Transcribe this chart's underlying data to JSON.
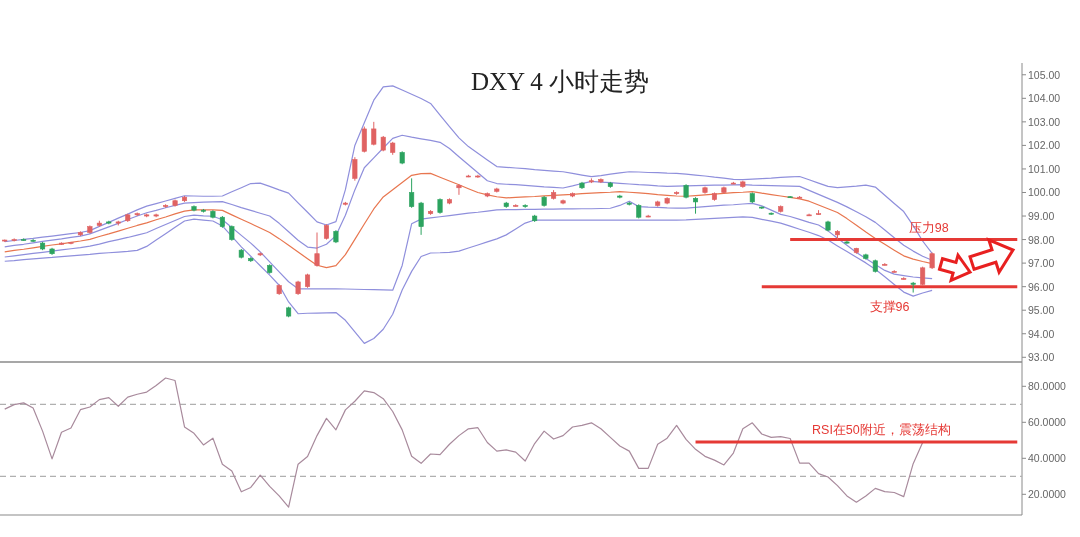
{
  "chart_data": [
    {
      "type": "candlestick",
      "title": "DXY 4 小时走势",
      "tick_labels": "y",
      "categories": [
        null,
        null,
        null,
        null,
        null,
        null,
        null,
        null,
        null,
        null,
        null,
        null,
        null,
        null,
        null,
        null,
        null,
        null,
        null,
        null,
        null,
        null,
        null,
        null,
        null,
        null,
        null,
        null,
        null,
        null,
        null,
        null,
        null,
        null,
        null,
        null,
        null,
        null,
        null,
        null,
        null,
        null,
        null,
        null,
        null,
        null,
        null,
        null,
        null,
        null,
        null,
        null,
        null,
        null,
        null,
        null,
        null,
        null,
        null,
        null,
        null,
        null,
        null,
        null,
        null,
        null,
        null,
        null,
        null,
        null,
        null,
        null,
        null,
        null,
        null,
        null,
        null,
        null,
        null,
        null,
        null,
        null,
        null,
        null,
        null,
        null,
        null,
        null,
        null,
        null,
        null,
        null,
        null,
        null,
        null,
        null,
        null,
        null,
        null,
        null,
        null,
        null,
        null,
        null,
        null,
        null,
        null,
        null
      ],
      "ohlc": [
        [
          97.95,
          98.0,
          97.9,
          97.98
        ],
        [
          97.98,
          98.05,
          97.92,
          98.0
        ],
        [
          98.0,
          98.05,
          97.95,
          97.97
        ],
        [
          97.97,
          98.02,
          97.9,
          97.95
        ],
        [
          97.85,
          97.9,
          97.55,
          97.6
        ],
        [
          97.6,
          97.65,
          97.35,
          97.4
        ],
        [
          97.8,
          97.88,
          97.78,
          97.85
        ],
        [
          97.85,
          97.9,
          97.8,
          97.88
        ],
        [
          98.2,
          98.35,
          98.15,
          98.3
        ],
        [
          98.3,
          98.6,
          98.25,
          98.55
        ],
        [
          98.6,
          98.8,
          98.55,
          98.7
        ],
        [
          98.75,
          98.8,
          98.65,
          98.7
        ],
        [
          98.7,
          98.8,
          98.6,
          98.75
        ],
        [
          98.8,
          99.1,
          98.75,
          99.05
        ],
        [
          99.05,
          99.15,
          99.0,
          99.1
        ],
        [
          99.0,
          99.1,
          98.95,
          99.05
        ],
        [
          99.0,
          99.1,
          98.95,
          99.05
        ],
        [
          99.4,
          99.5,
          99.35,
          99.45
        ],
        [
          99.45,
          99.7,
          99.4,
          99.65
        ],
        [
          99.65,
          99.85,
          99.6,
          99.8
        ],
        [
          99.4,
          99.45,
          99.2,
          99.25
        ],
        [
          99.25,
          99.3,
          99.15,
          99.2
        ],
        [
          99.2,
          99.25,
          98.9,
          98.95
        ],
        [
          98.95,
          99.0,
          98.5,
          98.55
        ],
        [
          98.55,
          98.6,
          97.95,
          98.0
        ],
        [
          97.55,
          97.6,
          97.2,
          97.25
        ],
        [
          97.2,
          97.25,
          97.05,
          97.1
        ],
        [
          97.35,
          97.45,
          97.3,
          97.4
        ],
        [
          96.9,
          96.95,
          96.55,
          96.6
        ],
        [
          95.7,
          96.1,
          95.65,
          96.05
        ],
        [
          95.1,
          95.15,
          94.7,
          94.75
        ],
        [
          95.7,
          96.25,
          95.65,
          96.2
        ],
        [
          96.0,
          96.55,
          95.95,
          96.5
        ],
        [
          96.9,
          98.3,
          96.85,
          97.4
        ],
        [
          98.05,
          98.65,
          98.0,
          98.6
        ],
        [
          98.35,
          98.4,
          97.85,
          97.9
        ],
        [
          99.5,
          99.6,
          99.45,
          99.55
        ],
        [
          100.6,
          101.5,
          100.5,
          101.4
        ],
        [
          101.75,
          102.8,
          101.7,
          102.7
        ],
        [
          102.05,
          103.0,
          102.0,
          102.7
        ],
        [
          101.8,
          102.4,
          101.75,
          102.35
        ],
        [
          101.7,
          102.15,
          101.6,
          102.1
        ],
        [
          101.7,
          101.75,
          101.2,
          101.25
        ],
        [
          100.0,
          100.6,
          99.35,
          99.4
        ],
        [
          99.55,
          99.6,
          98.2,
          98.55
        ],
        [
          99.1,
          99.25,
          99.05,
          99.2
        ],
        [
          99.7,
          99.75,
          99.1,
          99.15
        ],
        [
          99.55,
          99.75,
          99.5,
          99.7
        ],
        [
          100.2,
          100.35,
          99.9,
          100.3
        ],
        [
          100.7,
          100.75,
          100.65,
          100.7
        ],
        [
          100.68,
          100.75,
          100.62,
          100.7
        ],
        [
          99.85,
          100.0,
          99.8,
          99.95
        ],
        [
          100.05,
          100.2,
          100.0,
          100.15
        ],
        [
          99.55,
          99.6,
          99.35,
          99.4
        ],
        [
          99.45,
          99.5,
          99.4,
          99.45
        ],
        [
          99.45,
          99.5,
          99.35,
          99.4
        ],
        [
          99.0,
          99.05,
          98.75,
          98.8
        ],
        [
          99.8,
          99.85,
          99.4,
          99.45
        ],
        [
          99.75,
          100.1,
          99.7,
          100.0
        ],
        [
          99.55,
          99.7,
          99.5,
          99.65
        ],
        [
          99.85,
          100.0,
          99.8,
          99.95
        ],
        [
          100.4,
          100.45,
          100.15,
          100.2
        ],
        [
          100.45,
          100.6,
          100.4,
          100.5
        ],
        [
          100.45,
          100.6,
          100.4,
          100.55
        ],
        [
          100.4,
          100.45,
          100.2,
          100.25
        ],
        [
          99.85,
          99.9,
          99.75,
          99.8
        ],
        [
          99.55,
          99.6,
          99.45,
          99.5
        ],
        [
          99.45,
          99.5,
          98.9,
          98.95
        ],
        [
          99.0,
          99.05,
          98.95,
          99.0
        ],
        [
          99.45,
          99.65,
          99.4,
          99.6
        ],
        [
          99.55,
          99.8,
          99.5,
          99.75
        ],
        [
          99.95,
          100.05,
          99.9,
          100.0
        ],
        [
          100.3,
          100.35,
          99.75,
          99.8
        ],
        [
          99.75,
          99.8,
          99.1,
          99.6
        ],
        [
          100.0,
          100.25,
          99.95,
          100.2
        ],
        [
          99.7,
          100.0,
          99.65,
          99.95
        ],
        [
          100.0,
          100.25,
          99.95,
          100.2
        ],
        [
          100.38,
          100.45,
          100.35,
          100.4
        ],
        [
          100.25,
          100.5,
          100.2,
          100.45
        ],
        [
          99.95,
          100.0,
          99.55,
          99.6
        ],
        [
          99.38,
          99.4,
          99.3,
          99.35
        ],
        [
          99.12,
          99.15,
          99.05,
          99.1
        ],
        [
          99.2,
          99.45,
          99.15,
          99.4
        ],
        [
          99.82,
          99.85,
          99.78,
          99.8
        ],
        [
          99.8,
          99.85,
          99.75,
          99.8
        ],
        [
          99.05,
          99.1,
          99.0,
          99.05
        ],
        [
          99.1,
          99.25,
          99.05,
          99.1
        ],
        [
          98.75,
          98.8,
          98.35,
          98.4
        ],
        [
          98.2,
          98.4,
          98.0,
          98.35
        ],
        [
          97.9,
          97.95,
          97.82,
          97.85
        ],
        [
          97.45,
          97.65,
          97.4,
          97.63
        ],
        [
          97.35,
          97.4,
          97.15,
          97.2
        ],
        [
          97.1,
          97.15,
          96.6,
          96.65
        ],
        [
          96.95,
          97.0,
          96.9,
          96.95
        ],
        [
          96.65,
          96.7,
          96.6,
          96.65
        ],
        [
          96.35,
          96.4,
          96.3,
          96.35
        ],
        [
          96.15,
          96.2,
          95.75,
          96.1
        ],
        [
          96.1,
          96.85,
          96.05,
          96.8
        ],
        [
          96.8,
          97.45,
          96.75,
          97.4
        ],
        null,
        null,
        null,
        null,
        null,
        null,
        null,
        null,
        null
      ],
      "colors": [
        "#e06262",
        "#e06262",
        "#2ca35f",
        "#2ca35f",
        "#2ca35f",
        "#2ca35f",
        "#e06262",
        "#e06262",
        "#e06262",
        "#e06262",
        "#e06262",
        "#2ca35f",
        "#e06262",
        "#e06262",
        "#e06262",
        "#e06262",
        "#e06262",
        "#e06262",
        "#e06262",
        "#e06262",
        "#2ca35f",
        "#2ca35f",
        "#2ca35f",
        "#2ca35f",
        "#2ca35f",
        "#2ca35f",
        "#2ca35f",
        "#e06262",
        "#2ca35f",
        "#e06262",
        "#2ca35f",
        "#e06262",
        "#e06262",
        "#e06262",
        "#e06262",
        "#2ca35f",
        "#e06262",
        "#e06262",
        "#e06262",
        "#e06262",
        "#e06262",
        "#e06262",
        "#2ca35f",
        "#2ca35f",
        "#2ca35f",
        "#e06262",
        "#2ca35f",
        "#e06262",
        "#e06262",
        "#e06262",
        "#e06262",
        "#e06262",
        "#e06262",
        "#2ca35f",
        "#e06262",
        "#2ca35f",
        "#2ca35f",
        "#2ca35f",
        "#e06262",
        "#e06262",
        "#e06262",
        "#2ca35f",
        "#e06262",
        "#e06262",
        "#2ca35f",
        "#2ca35f",
        "#2ca35f",
        "#2ca35f",
        "#e06262",
        "#e06262",
        "#e06262",
        "#e06262",
        "#2ca35f",
        "#2ca35f",
        "#e06262",
        "#e06262",
        "#e06262",
        "#e06262",
        "#e06262",
        "#2ca35f",
        "#2ca35f",
        "#2ca35f",
        "#e06262",
        "#2ca35f",
        "#e06262",
        "#e06262",
        "#e06262",
        "#2ca35f",
        "#e06262",
        "#2ca35f",
        "#e06262",
        "#2ca35f",
        "#2ca35f",
        "#e06262",
        "#e06262",
        "#e06262",
        "#2ca35f",
        "#e06262",
        "#e06262",
        null,
        null,
        null,
        null,
        null,
        null,
        null,
        null,
        null
      ],
      "series": [
        {
          "type": "line",
          "color": "#8f8fdc",
          "values": [
            97.91,
            97.96,
            98.01,
            98.05,
            98.1,
            98.15,
            98.2,
            98.25,
            98.3,
            98.38,
            98.56,
            98.73,
            98.91,
            99.08,
            99.26,
            99.42,
            99.53,
            99.64,
            99.75,
            99.86,
            99.85,
            99.84,
            99.84,
            99.85,
            100.03,
            100.2,
            100.38,
            100.4,
            100.26,
            100.11,
            99.97,
            99.56,
            99.16,
            98.75,
            98.62,
            98.76,
            100.12,
            102.0,
            102.96,
            103.92,
            104.49,
            104.53,
            104.35,
            104.17,
            103.99,
            103.78,
            103.29,
            102.8,
            102.32,
            101.95,
            101.67,
            101.38,
            101.1,
            101.07,
            101.04,
            101.01,
            100.97,
            100.94,
            100.91,
            100.88,
            100.81,
            100.74,
            100.67,
            100.72,
            100.78,
            100.83,
            100.88,
            100.87,
            100.85,
            100.84,
            100.82,
            100.81,
            100.78,
            100.74,
            100.7,
            100.65,
            100.61,
            100.56,
            100.55,
            100.57,
            100.59,
            100.61,
            100.64,
            100.66,
            100.68,
            100.54,
            100.4,
            100.26,
            100.21,
            100.24,
            100.27,
            100.31,
            100.23,
            99.88,
            99.53,
            99.19,
            98.59,
            97.94,
            97.41,
            null,
            null,
            null,
            null,
            null,
            null,
            null,
            null,
            null
          ]
        },
        {
          "type": "line",
          "color": "#8f8fdc",
          "values": [
            97.69,
            97.75,
            97.8,
            97.86,
            97.92,
            97.98,
            98.03,
            98.09,
            98.15,
            98.24,
            98.39,
            98.54,
            98.69,
            98.85,
            99.0,
            99.14,
            99.24,
            99.35,
            99.45,
            99.55,
            99.57,
            99.59,
            99.6,
            99.61,
            99.49,
            99.36,
            99.24,
            99.12,
            99.0,
            98.69,
            98.33,
            97.97,
            97.68,
            97.64,
            97.8,
            98.17,
            99.03,
            100.11,
            101.05,
            101.47,
            101.89,
            102.3,
            102.43,
            102.35,
            102.28,
            102.21,
            102.13,
            101.87,
            101.52,
            101.18,
            100.84,
            100.5,
            100.38,
            100.35,
            100.33,
            100.3,
            100.27,
            100.24,
            100.22,
            100.19,
            100.28,
            100.38,
            100.47,
            100.44,
            100.42,
            100.39,
            100.36,
            100.33,
            100.31,
            100.28,
            100.26,
            100.27,
            100.28,
            100.29,
            100.3,
            100.31,
            100.31,
            100.32,
            100.33,
            100.31,
            100.3,
            100.29,
            100.28,
            100.27,
            100.26,
            100.09,
            99.92,
            99.75,
            99.58,
            99.39,
            99.18,
            98.97,
            98.73,
            98.41,
            98.08,
            97.76,
            97.51,
            97.29,
            97.12,
            null,
            null,
            null,
            null,
            null,
            null,
            null,
            null,
            null
          ]
        },
        {
          "type": "line",
          "color": "#e8764f",
          "values": [
            97.48,
            97.54,
            97.59,
            97.65,
            97.71,
            97.77,
            97.82,
            97.88,
            97.94,
            98.01,
            98.13,
            98.24,
            98.36,
            98.48,
            98.6,
            98.71,
            98.84,
            98.96,
            99.09,
            99.21,
            99.26,
            99.26,
            99.26,
            99.24,
            99.05,
            98.86,
            98.68,
            98.49,
            98.3,
            98.04,
            97.76,
            97.47,
            97.19,
            96.91,
            96.81,
            96.89,
            97.36,
            98.01,
            98.66,
            99.3,
            99.81,
            100.12,
            100.42,
            100.73,
            100.8,
            100.81,
            100.65,
            100.49,
            100.33,
            100.16,
            100.0,
            99.9,
            99.82,
            99.77,
            99.79,
            99.81,
            99.83,
            99.86,
            99.88,
            99.9,
            99.92,
            99.95,
            99.97,
            99.99,
            100.01,
            100.04,
            100.01,
            99.98,
            99.95,
            99.91,
            99.88,
            99.85,
            99.84,
            99.87,
            99.9,
            99.93,
            99.96,
            99.99,
            100.01,
            100.04,
            99.97,
            99.91,
            99.85,
            99.79,
            99.73,
            99.63,
            99.47,
            99.31,
            99.15,
            98.89,
            98.61,
            98.32,
            98.05,
            97.8,
            97.55,
            97.31,
            97.17,
            97.07,
            96.98,
            null,
            null,
            null,
            null,
            null,
            null,
            null,
            null,
            null
          ]
        },
        {
          "type": "line",
          "color": "#8f8fdc",
          "values": [
            97.26,
            97.31,
            97.36,
            97.41,
            97.46,
            97.51,
            97.56,
            97.61,
            97.66,
            97.72,
            97.81,
            97.91,
            98.0,
            98.09,
            98.19,
            98.29,
            98.47,
            98.64,
            98.81,
            98.98,
            99.04,
            99.01,
            98.99,
            98.84,
            98.51,
            98.18,
            97.85,
            97.48,
            97.05,
            96.63,
            96.21,
            95.91,
            95.91,
            95.91,
            95.91,
            95.91,
            95.9,
            95.89,
            95.88,
            95.87,
            95.86,
            95.85,
            96.9,
            98.67,
            98.87,
            98.92,
            98.97,
            99.02,
            99.07,
            99.12,
            99.16,
            99.21,
            99.26,
            99.27,
            99.27,
            99.28,
            99.28,
            99.29,
            99.29,
            99.3,
            99.3,
            99.31,
            99.31,
            99.32,
            99.33,
            99.45,
            99.63,
            99.4,
            99.38,
            99.37,
            99.35,
            99.34,
            99.34,
            99.37,
            99.4,
            99.43,
            99.46,
            99.48,
            99.51,
            99.54,
            99.43,
            99.25,
            99.07,
            98.98,
            98.86,
            98.73,
            98.62,
            98.37,
            98.06,
            97.76,
            97.45,
            97.2,
            96.94,
            96.69,
            96.53,
            96.47,
            96.41,
            96.37,
            96.34,
            null,
            null,
            null,
            null,
            null,
            null,
            null,
            null,
            null
          ]
        },
        {
          "type": "line",
          "color": "#8f8fdc",
          "values": [
            97.08,
            97.11,
            97.15,
            97.18,
            97.21,
            97.24,
            97.28,
            97.31,
            97.34,
            97.37,
            97.41,
            97.44,
            97.47,
            97.5,
            97.54,
            97.71,
            97.98,
            98.25,
            98.52,
            98.79,
            98.87,
            98.83,
            98.79,
            98.58,
            98.14,
            97.69,
            97.29,
            96.89,
            96.49,
            96.06,
            95.35,
            94.85,
            94.87,
            94.88,
            94.89,
            94.9,
            94.57,
            94.08,
            93.59,
            93.8,
            94.19,
            94.83,
            95.86,
            96.65,
            97.28,
            97.43,
            97.44,
            97.46,
            97.51,
            97.64,
            97.77,
            97.9,
            98.03,
            98.2,
            98.45,
            98.7,
            98.83,
            98.83,
            98.83,
            98.83,
            98.83,
            98.83,
            98.83,
            98.83,
            98.83,
            98.83,
            98.83,
            98.83,
            98.83,
            98.83,
            98.83,
            98.83,
            98.84,
            98.86,
            98.88,
            98.9,
            98.92,
            98.94,
            98.96,
            98.94,
            98.86,
            98.78,
            98.7,
            98.57,
            98.44,
            98.31,
            98.17,
            97.98,
            97.73,
            97.49,
            97.25,
            97.01,
            96.74,
            96.42,
            96.09,
            95.77,
            95.6,
            95.73,
            95.84,
            null,
            null,
            null,
            null,
            null,
            null,
            null,
            null,
            null
          ]
        },
        {
          "type": "line",
          "name": "压力98",
          "color": "#e53935",
          "values": [
            null,
            null,
            null,
            null,
            null,
            null,
            null,
            null,
            null,
            null,
            null,
            null,
            null,
            null,
            null,
            null,
            null,
            null,
            null,
            null,
            null,
            null,
            null,
            null,
            null,
            null,
            null,
            null,
            null,
            null,
            null,
            null,
            null,
            null,
            null,
            null,
            null,
            null,
            null,
            null,
            null,
            null,
            null,
            null,
            null,
            null,
            null,
            null,
            null,
            null,
            null,
            null,
            null,
            null,
            null,
            null,
            null,
            null,
            null,
            null,
            null,
            null,
            null,
            null,
            null,
            null,
            null,
            null,
            null,
            null,
            null,
            null,
            null,
            null,
            null,
            null,
            null,
            null,
            null,
            null,
            null,
            null,
            null,
            98,
            98,
            98,
            98,
            98,
            98,
            98,
            98,
            98,
            98,
            98,
            98,
            98,
            98,
            98,
            98,
            98,
            98,
            98,
            98,
            98,
            98,
            98,
            98,
            98
          ]
        },
        {
          "type": "line",
          "name": "支撑96",
          "color": "#e53935",
          "values": [
            null,
            null,
            null,
            null,
            null,
            null,
            null,
            null,
            null,
            null,
            null,
            null,
            null,
            null,
            null,
            null,
            null,
            null,
            null,
            null,
            null,
            null,
            null,
            null,
            null,
            null,
            null,
            null,
            null,
            null,
            null,
            null,
            null,
            null,
            null,
            null,
            null,
            null,
            null,
            null,
            null,
            null,
            null,
            null,
            null,
            null,
            null,
            null,
            null,
            null,
            null,
            null,
            null,
            null,
            null,
            null,
            null,
            null,
            null,
            null,
            null,
            null,
            null,
            null,
            null,
            null,
            null,
            null,
            null,
            null,
            null,
            null,
            null,
            null,
            null,
            null,
            null,
            null,
            null,
            null,
            96,
            96,
            96,
            96,
            96,
            96,
            96,
            96,
            96,
            96,
            96,
            96,
            96,
            96,
            96,
            96,
            96,
            96,
            96,
            96,
            96,
            96,
            96,
            96,
            96,
            96,
            96,
            96
          ]
        }
      ],
      "ylim": [
        92.8,
        105.5
      ],
      "yticks": [
        {
          "value": 93,
          "label": "93.00"
        },
        {
          "value": 94,
          "label": "94.00"
        },
        {
          "value": 95,
          "label": "95.00"
        },
        {
          "value": 96,
          "label": "96.00"
        },
        {
          "value": 97,
          "label": "97.00"
        },
        {
          "value": 98,
          "label": "98.00"
        },
        {
          "value": 99,
          "label": "99.00"
        },
        {
          "value": 100,
          "label": "100.00"
        },
        {
          "value": 101,
          "label": "101.00"
        },
        {
          "value": 102,
          "label": "102.00"
        },
        {
          "value": 103,
          "label": "103.00"
        },
        {
          "value": 104,
          "label": "104.00"
        },
        {
          "value": 105,
          "label": "105.00"
        }
      ]
    },
    {
      "type": "line",
      "tick_labels": "y",
      "categories": [
        null,
        null,
        null,
        null,
        null,
        null,
        null,
        null,
        null,
        null,
        null,
        null,
        null,
        null,
        null,
        null,
        null,
        null,
        null,
        null,
        null,
        null,
        null,
        null,
        null,
        null,
        null,
        null,
        null,
        null,
        null,
        null,
        null,
        null,
        null,
        null,
        null,
        null,
        null,
        null,
        null,
        null,
        null,
        null,
        null,
        null,
        null,
        null,
        null,
        null,
        null,
        null,
        null,
        null,
        null,
        null,
        null,
        null,
        null,
        null,
        null,
        null,
        null,
        null,
        null,
        null,
        null,
        null,
        null,
        null,
        null,
        null,
        null,
        null,
        null,
        null,
        null,
        null,
        null,
        null,
        null,
        null,
        null,
        null,
        null,
        null,
        null,
        null,
        null,
        null,
        null,
        null,
        null,
        null,
        null,
        null,
        null,
        null,
        null,
        null,
        null,
        null,
        null,
        null,
        null,
        null,
        null,
        null
      ],
      "series": [
        {
          "color": "#a88a9c",
          "values": [
            67.3,
            69.8,
            70.8,
            67.9,
            55.1,
            39.7,
            54.5,
            56.8,
            67.0,
            68.5,
            72.6,
            73.7,
            68.9,
            74.0,
            75.6,
            76.8,
            80.4,
            84.6,
            83.2,
            57.4,
            53.9,
            47.4,
            51.2,
            36.7,
            33.0,
            21.4,
            23.8,
            30.6,
            24.4,
            19.1,
            12.9,
            36.7,
            41.0,
            52.6,
            62.2,
            55.8,
            66.9,
            71.7,
            77.5,
            76.5,
            73.1,
            66.0,
            55.8,
            41.1,
            37.2,
            42.4,
            42.0,
            47.8,
            52.6,
            56.4,
            57.0,
            48.8,
            44.0,
            44.7,
            43.4,
            38.5,
            48.2,
            55.1,
            50.7,
            52.6,
            57.4,
            58.3,
            59.7,
            56.4,
            51.6,
            46.8,
            44.0,
            34.4,
            34.4,
            47.8,
            51.2,
            58.3,
            50.5,
            45.0,
            41.1,
            39.0,
            36.3,
            42.9,
            56.4,
            59.7,
            53.5,
            51.6,
            52.0,
            51.0,
            37.3,
            37.3,
            31.5,
            29.6,
            24.8,
            19.1,
            15.6,
            19.1,
            23.3,
            21.5,
            21.0,
            18.7,
            37.0,
            48.8,
            null,
            null,
            null,
            null,
            null,
            null,
            null,
            null,
            null,
            null
          ]
        },
        {
          "name": "RSI在50附近，震荡结构",
          "color": "#e53935",
          "values": [
            null,
            null,
            null,
            null,
            null,
            null,
            null,
            null,
            null,
            null,
            null,
            null,
            null,
            null,
            null,
            null,
            null,
            null,
            null,
            null,
            null,
            null,
            null,
            null,
            null,
            null,
            null,
            null,
            null,
            null,
            null,
            null,
            null,
            null,
            null,
            null,
            null,
            null,
            null,
            null,
            null,
            null,
            null,
            null,
            null,
            null,
            null,
            null,
            null,
            null,
            null,
            null,
            null,
            null,
            null,
            null,
            null,
            null,
            null,
            null,
            null,
            null,
            null,
            null,
            null,
            null,
            null,
            null,
            null,
            null,
            null,
            null,
            null,
            49,
            49,
            49,
            49,
            49,
            49,
            49,
            49,
            49,
            49,
            49,
            49,
            49,
            49,
            49,
            49,
            49,
            49,
            49,
            49,
            49,
            49,
            49,
            49,
            49,
            49,
            49,
            49,
            49,
            49,
            49,
            49,
            49,
            49,
            49
          ]
        }
      ],
      "ref_lines": [
        {
          "axis": "y",
          "value": 70,
          "color": "#b0b0b0",
          "line_style": "dashed"
        },
        {
          "axis": "y",
          "value": 30,
          "color": "#b0b0b0",
          "line_style": "dashed"
        }
      ],
      "ylim": [
        8.5,
        93.5
      ],
      "yticks": [
        {
          "value": 20,
          "label": "20.0000"
        },
        {
          "value": 40,
          "label": "40.0000"
        },
        {
          "value": 60,
          "label": "60.0000"
        },
        {
          "value": 80,
          "label": "80.0000"
        }
      ]
    }
  ]
}
